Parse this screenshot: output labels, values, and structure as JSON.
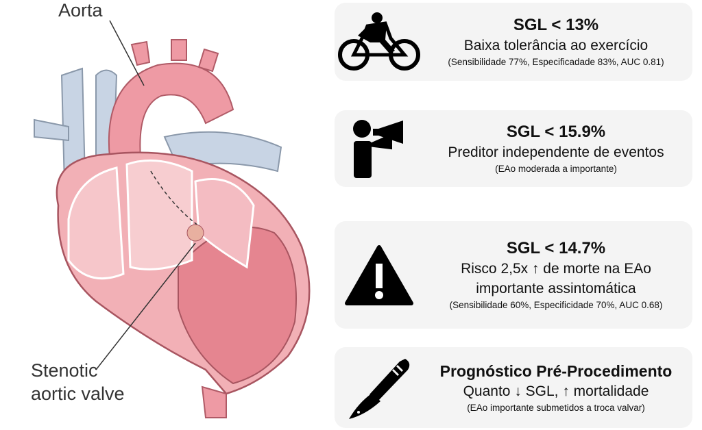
{
  "labels": {
    "aorta": "Aorta",
    "stenotic_line1": "Stenotic",
    "stenotic_line2": "aortic valve"
  },
  "panels": [
    {
      "icon": "cyclist-icon",
      "title": "SGL < 13%",
      "line1": "Baixa tolerância ao exercício",
      "line2": "",
      "note": "(Sensibilidade 77%, Especificadade 83%, AUC 0.81)"
    },
    {
      "icon": "megaphone-person-icon",
      "title": "SGL < 15.9%",
      "line1": "Preditor independente de eventos",
      "line2": "",
      "note": "(EAo moderada a importante)"
    },
    {
      "icon": "warning-icon",
      "title": "SGL < 14.7%",
      "line1": "Risco 2,5x ↑ de morte na EAo",
      "line2": "importante assintomática",
      "note": "(Sensibilidade 60%, Especificidade 70%, AUC 0.68)"
    },
    {
      "icon": "scalpel-icon",
      "title": "Prognóstico Pré-Procedimento",
      "line1": "Quanto ↓ SGL, ↑ mortalidade",
      "line2": "",
      "note": "(EAo importante submetidos a troca valvar)"
    }
  ],
  "colors": {
    "heart": "#f0a0a8",
    "heart_dark": "#e58590",
    "vessel_blue": "#c8d4e4",
    "panel_bg": "#f4f4f4"
  }
}
